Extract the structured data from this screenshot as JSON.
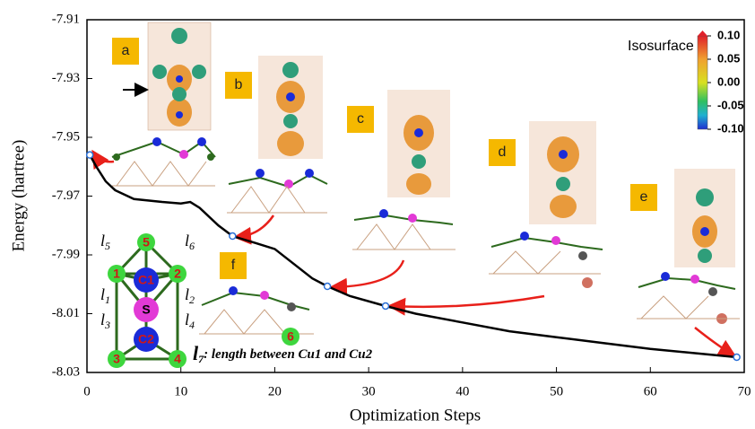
{
  "chart_data": {
    "type": "line",
    "x_label": "Optimization Steps",
    "y_label": "Energy (hartree)",
    "xlim": [
      0,
      70
    ],
    "ylim": [
      -8.03,
      -7.91
    ],
    "xticks": [
      0,
      10,
      20,
      30,
      40,
      50,
      60,
      70
    ],
    "yticks": [
      -8.03,
      -8.01,
      -7.99,
      -7.97,
      -7.95,
      -7.93,
      -7.91
    ],
    "series": [
      {
        "color": "#000000",
        "x": [
          0.3,
          1,
          2,
          3,
          5,
          8,
          10,
          11,
          12,
          14,
          15.5,
          18,
          20,
          22,
          24,
          25.6,
          28,
          31.8,
          35,
          40,
          45,
          50,
          55,
          60,
          65,
          69.2
        ],
        "values": [
          -7.956,
          -7.96,
          -7.965,
          -7.968,
          -7.971,
          -7.972,
          -7.9725,
          -7.972,
          -7.974,
          -7.98,
          -7.9836,
          -7.986,
          -7.988,
          -7.993,
          -7.998,
          -8.0007,
          -8.004,
          -8.0074,
          -8.01,
          -8.013,
          -8.016,
          -8.018,
          -8.02,
          -8.022,
          -8.0235,
          -8.0248
        ]
      }
    ],
    "markers": {
      "color": "#2a6fd6",
      "x": [
        0.3,
        15.5,
        25.6,
        31.8,
        69.2
      ],
      "values": [
        -7.956,
        -7.9836,
        -8.0007,
        -8.0074,
        -8.0248
      ]
    },
    "panel_labels": [
      "a",
      "b",
      "c",
      "d",
      "e",
      "f"
    ],
    "colorbar": {
      "title": "Isosurface",
      "range": [
        -0.1,
        0.1
      ],
      "ticks": [
        {
          "value": 0.1,
          "label": "0.10"
        },
        {
          "value": 0.05,
          "label": "0.05"
        },
        {
          "value": 0,
          "label": "0.00"
        },
        {
          "value": -0.05,
          "label": "-0.05"
        },
        {
          "value": -0.1,
          "label": "-0.10"
        }
      ]
    },
    "structure": {
      "atoms": [
        "5",
        "1",
        "2",
        "C1",
        "S",
        "C2",
        "3",
        "4"
      ],
      "bond_symbol": "l",
      "bond_labels": [
        "5",
        "6",
        "1",
        "2",
        "3",
        "4"
      ],
      "extra_atom": "6"
    },
    "bond_note": {
      "symbol": "l",
      "subscript": "7",
      "text": ": length between Cu1 and Cu2"
    }
  }
}
